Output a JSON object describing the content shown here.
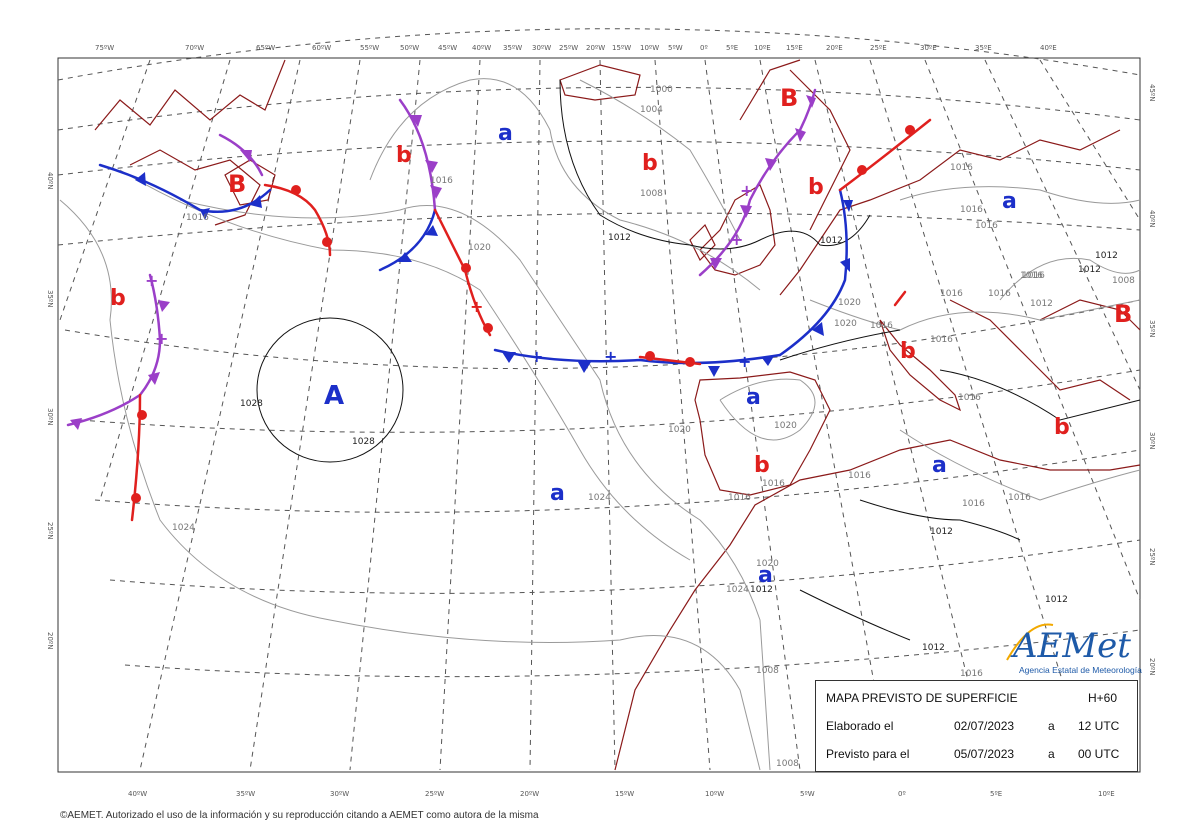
{
  "map": {
    "top_longitudes": [
      "75ºW",
      "70ºW",
      "65ºW",
      "60ºW",
      "55ºW",
      "50ºW",
      "45ºW",
      "40ºW",
      "35ºW",
      "30ºW",
      "25ºW",
      "20ºW",
      "15ºW",
      "10ºW",
      "5ºW",
      "0º",
      "5ºE",
      "10ºE",
      "15ºE",
      "20ºE",
      "25ºE",
      "30ºE",
      "35ºE",
      "40ºE"
    ],
    "bottom_longitudes": [
      "40ºW",
      "35ºW",
      "30ºW",
      "25ºW",
      "20ºW",
      "15ºW",
      "10ºW",
      "5ºW",
      "0º",
      "5ºE",
      "10ºE"
    ],
    "left_latitudes": [
      "40ºN",
      "35ºN",
      "30ºN",
      "25ºN",
      "20ºN"
    ],
    "right_latitudes": [
      "45ºN",
      "40ºN",
      "35ºN",
      "30ºN",
      "25ºN",
      "20ºN"
    ],
    "isobar_labels": [
      "1028",
      "1028",
      "1024",
      "1024",
      "1020",
      "1020",
      "1020",
      "1020",
      "1016",
      "1016",
      "1016",
      "1016",
      "1016",
      "1016",
      "1016",
      "1016",
      "1016",
      "1016",
      "1016",
      "1016",
      "1016",
      "1016",
      "1016",
      "1012",
      "1012",
      "1012",
      "1012",
      "1012",
      "1012",
      "1012",
      "1012",
      "1008",
      "1008",
      "1008",
      "1008",
      "1004",
      "1000",
      "1020",
      "1016",
      "1016",
      "1024",
      "1020",
      "1016",
      "1012"
    ],
    "pressure_centers": [
      {
        "label": "A",
        "kind": "high",
        "color": "#1c2fc9"
      },
      {
        "label": "B",
        "kind": "low",
        "color": "#e0201e"
      },
      {
        "label": "B",
        "kind": "low",
        "color": "#e0201e"
      },
      {
        "label": "B",
        "kind": "low",
        "color": "#e0201e"
      }
    ],
    "relative_markers": [
      "a",
      "a",
      "a",
      "a",
      "a",
      "a",
      "a",
      "b",
      "b",
      "b",
      "b",
      "b",
      "b",
      "b",
      "b"
    ],
    "front_colors": {
      "cold": "#1c2fc9",
      "warm": "#e0201e",
      "occluded": "#9b3fc8",
      "stationary_mark": "#1c2fc9"
    },
    "land_color": "#8b1a1a",
    "grid_color": "#555555"
  },
  "info": {
    "title": "MAPA PREVISTO DE SUPERFICIE",
    "horizon": "H+60",
    "row1_label": "Elaborado el",
    "row1_date": "02/07/2023",
    "row1_sep": "a",
    "row1_time": "12 UTC",
    "row2_label": "Previsto para el",
    "row2_date": "05/07/2023",
    "row2_sep": "a",
    "row2_time": "00 UTC"
  },
  "logo": {
    "name": "AEMet",
    "subtitle": "Agencia Estatal de Meteorología",
    "color": "#1e5aa8",
    "accent": "#f2a900"
  },
  "footer": "©AEMET. Autorizado el uso de la información y su reproducción citando a AEMET como autora de la misma"
}
